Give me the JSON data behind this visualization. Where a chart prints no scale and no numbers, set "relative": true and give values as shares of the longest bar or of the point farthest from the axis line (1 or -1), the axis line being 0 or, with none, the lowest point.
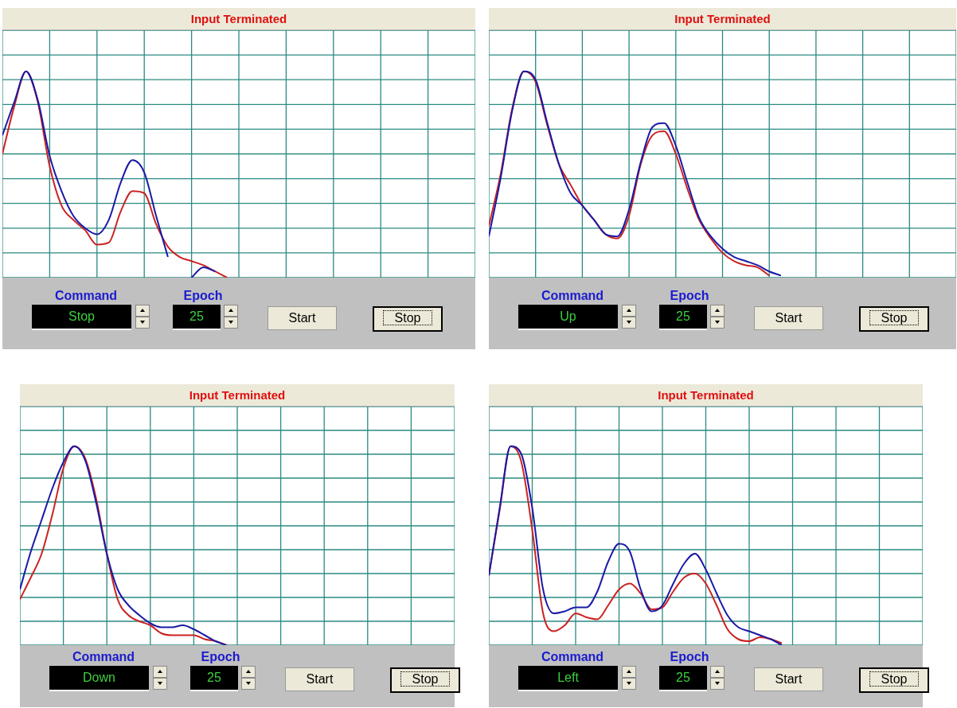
{
  "chart_data": [
    {
      "type": "line",
      "title": "Input Terminated",
      "relative": true,
      "grid": true,
      "legend": false,
      "marker": "none",
      "line_style": "solid",
      "categories": [
        null,
        null,
        null,
        null,
        null,
        null,
        null,
        null,
        null,
        null,
        null,
        null,
        null,
        null,
        null,
        null,
        null,
        null,
        null,
        null,
        null,
        null,
        null,
        null,
        null,
        null,
        null,
        null,
        null,
        null,
        null,
        null,
        null,
        null,
        null,
        null,
        null,
        null,
        null,
        null,
        null
      ],
      "series": [
        {
          "color": "#1a1aa6",
          "values": [
            0.69,
            0.85,
            1,
            0.86,
            0.59,
            0.42,
            0.3,
            0.24,
            0.21,
            0.28,
            0.46,
            0.57,
            0.51,
            0.3,
            0.1,
            null,
            0.0,
            0.05,
            0.03,
            null,
            null,
            null,
            null,
            null,
            null,
            null,
            null,
            null,
            null,
            null,
            null,
            null,
            null,
            null,
            null,
            null,
            null,
            null,
            null,
            null,
            null
          ]
        },
        {
          "color": "#cc2222",
          "values": [
            0.6,
            0.83,
            1,
            0.85,
            0.54,
            0.35,
            0.28,
            0.23,
            0.16,
            0.17,
            0.32,
            0.42,
            0.41,
            0.26,
            0.15,
            0.1,
            0.08,
            0.06,
            0.03,
            0.0,
            null,
            null,
            null,
            null,
            null,
            null,
            null,
            null,
            null,
            null,
            null,
            null,
            null,
            null,
            null,
            null,
            null,
            null,
            null,
            null,
            null
          ]
        }
      ],
      "annotations": [
        "Command",
        "Stop",
        "Epoch",
        "25",
        "Start",
        "Stop"
      ]
    },
    {
      "type": "line",
      "title": "Input Terminated",
      "relative": true,
      "grid": true,
      "legend": false,
      "marker": "none",
      "line_style": "solid",
      "categories": [
        null,
        null,
        null,
        null,
        null,
        null,
        null,
        null,
        null,
        null,
        null,
        null,
        null,
        null,
        null,
        null,
        null,
        null,
        null,
        null,
        null,
        null,
        null,
        null,
        null,
        null,
        null,
        null,
        null,
        null,
        null,
        null,
        null,
        null,
        null,
        null,
        null,
        null,
        null,
        null,
        null
      ],
      "series": [
        {
          "color": "#1a1aa6",
          "values": [
            0.2,
            0.48,
            0.81,
            1,
            0.96,
            0.75,
            0.55,
            0.41,
            0.35,
            0.28,
            0.21,
            0.2,
            0.33,
            0.56,
            0.73,
            0.75,
            0.64,
            0.46,
            0.29,
            0.2,
            0.14,
            0.1,
            0.08,
            0.06,
            0.03,
            0.01,
            null,
            null,
            null,
            null,
            null,
            null,
            null,
            null,
            null,
            null,
            null,
            null,
            null,
            null,
            null
          ]
        },
        {
          "color": "#cc2222",
          "values": [
            0.25,
            0.5,
            0.82,
            1,
            0.95,
            0.74,
            0.55,
            0.45,
            0.35,
            0.28,
            0.21,
            0.19,
            0.3,
            0.55,
            0.69,
            0.71,
            0.6,
            0.43,
            0.28,
            0.19,
            0.12,
            0.08,
            0.06,
            0.05,
            0.01,
            null,
            null,
            null,
            null,
            null,
            null,
            null,
            null,
            null,
            null,
            null,
            null,
            null,
            null,
            null,
            null
          ]
        }
      ],
      "annotations": [
        "Command",
        "Up",
        "Epoch",
        "25",
        "Start",
        "Stop"
      ]
    },
    {
      "type": "line",
      "title": "Input Terminated",
      "relative": true,
      "grid": true,
      "legend": false,
      "marker": "none",
      "line_style": "solid",
      "categories": [
        null,
        null,
        null,
        null,
        null,
        null,
        null,
        null,
        null,
        null,
        null,
        null,
        null,
        null,
        null,
        null,
        null,
        null,
        null,
        null,
        null,
        null,
        null,
        null,
        null,
        null,
        null,
        null,
        null,
        null,
        null,
        null,
        null,
        null,
        null,
        null,
        null,
        null,
        null,
        null,
        null
      ],
      "series": [
        {
          "color": "#1a1aa6",
          "values": [
            0.28,
            0.47,
            0.63,
            0.79,
            0.92,
            1,
            0.93,
            0.72,
            0.46,
            0.28,
            0.2,
            0.15,
            0.11,
            0.09,
            0.09,
            0.1,
            0.08,
            0.05,
            0.02,
            0.0,
            null,
            null,
            null,
            null,
            null,
            null,
            null,
            null,
            null,
            null,
            null,
            null,
            null,
            null,
            null,
            null,
            null,
            null,
            null,
            null,
            null
          ]
        },
        {
          "color": "#cc2222",
          "values": [
            0.23,
            0.34,
            0.46,
            0.66,
            0.89,
            1,
            0.94,
            0.74,
            0.46,
            0.23,
            0.15,
            0.12,
            0.1,
            0.06,
            0.05,
            0.05,
            0.05,
            0.03,
            0.02,
            0.0,
            null,
            null,
            null,
            null,
            null,
            null,
            null,
            null,
            null,
            null,
            null,
            null,
            null,
            null,
            null,
            null,
            null,
            null,
            null,
            null,
            null
          ]
        }
      ],
      "annotations": [
        "Command",
        "Down",
        "Epoch",
        "25",
        "Start",
        "Stop"
      ]
    },
    {
      "type": "line",
      "title": "Input Terminated",
      "relative": true,
      "grid": true,
      "legend": false,
      "marker": "none",
      "line_style": "solid",
      "categories": [
        null,
        null,
        null,
        null,
        null,
        null,
        null,
        null,
        null,
        null,
        null,
        null,
        null,
        null,
        null,
        null,
        null,
        null,
        null,
        null,
        null,
        null,
        null,
        null,
        null,
        null,
        null,
        null,
        null,
        null,
        null,
        null,
        null,
        null,
        null,
        null,
        null,
        null,
        null,
        null,
        null
      ],
      "series": [
        {
          "color": "#1a1aa6",
          "values": [
            0.35,
            0.69,
            1,
            0.96,
            0.69,
            0.28,
            0.16,
            0.17,
            0.19,
            0.19,
            0.27,
            0.42,
            0.51,
            0.47,
            0.28,
            0.17,
            0.2,
            0.31,
            0.41,
            0.46,
            0.38,
            0.26,
            0.15,
            0.09,
            0.07,
            0.05,
            0.03,
            0.0,
            null,
            null,
            null,
            null,
            null,
            null,
            null,
            null,
            null,
            null,
            null,
            null,
            null
          ]
        },
        {
          "color": "#cc2222",
          "values": [
            0.35,
            0.68,
            1,
            0.92,
            0.58,
            0.16,
            0.07,
            0.1,
            0.16,
            0.14,
            0.13,
            0.2,
            0.28,
            0.31,
            0.26,
            0.18,
            0.19,
            0.27,
            0.34,
            0.36,
            0.31,
            0.2,
            0.08,
            0.03,
            0.02,
            0.04,
            0.03,
            0.01,
            null,
            null,
            null,
            null,
            null,
            null,
            null,
            null,
            null,
            null,
            null,
            null,
            null
          ]
        }
      ],
      "annotations": [
        "Command",
        "Left",
        "Epoch",
        "25",
        "Start",
        "Stop"
      ]
    }
  ]
}
